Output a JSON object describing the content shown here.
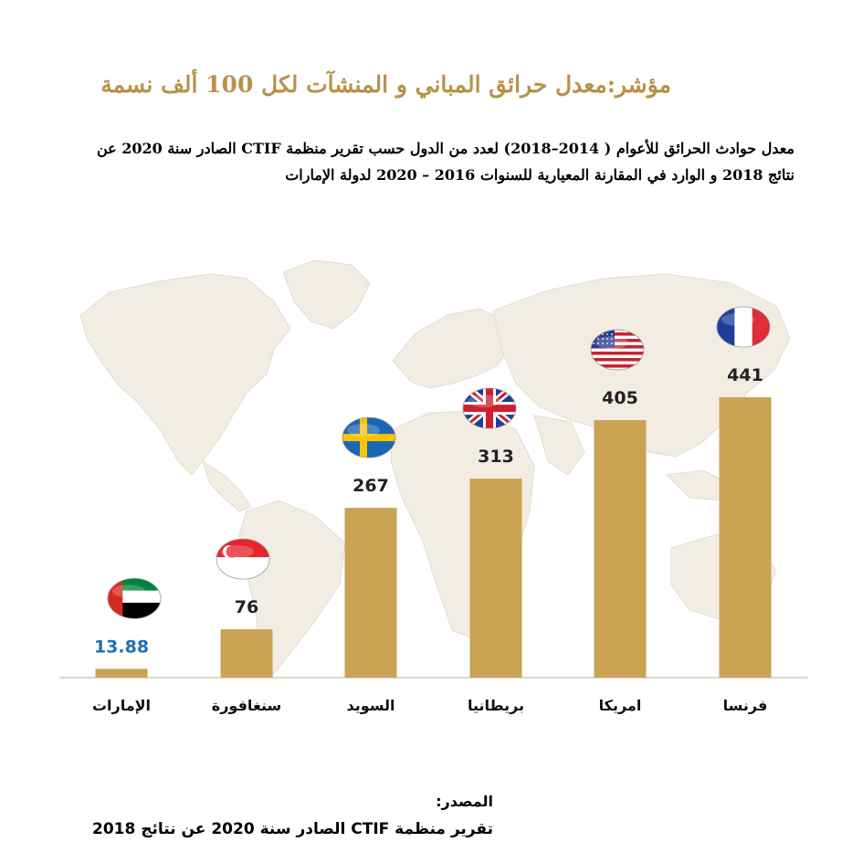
{
  "header": {
    "title": "مؤشر:معدل حرائق المباني و المنشآت لكل 100 ألف نسمة",
    "description": "معدل حوادث الحرائق للأعوام ( 2014–2018) لعدد من الدول حسب تقرير منظمة CTIF الصادر سنة 2020 عن نتائج 2018 و الوارد في المقارنة المعيارية للسنوات 2016 – 2020 لدولة الإمارات"
  },
  "chart_data": {
    "type": "bar",
    "categories": [
      "الإمارات",
      "سنغافورة",
      "السويد",
      "بريطانيا",
      "امريكا",
      "فرنسا"
    ],
    "values": [
      13.88,
      76,
      267,
      313,
      405,
      441
    ],
    "value_labels": [
      "13.88",
      "76",
      "267",
      "313",
      "405",
      "441"
    ],
    "flags": [
      "uae-flag",
      "singapore-flag",
      "sweden-flag",
      "uk-flag",
      "usa-flag",
      "france-flag"
    ],
    "ylim": [
      0,
      441
    ],
    "grid": false,
    "background": "world-map",
    "colors": {
      "bar": "#c9a254",
      "highlight_label": "#1f6fb5",
      "label": "#222222",
      "map": "#f2ede3"
    }
  },
  "source": {
    "label": "المصدر:",
    "text": "تقرير منظمة CTIF الصادر سنة 2020 عن نتائج 2018"
  }
}
